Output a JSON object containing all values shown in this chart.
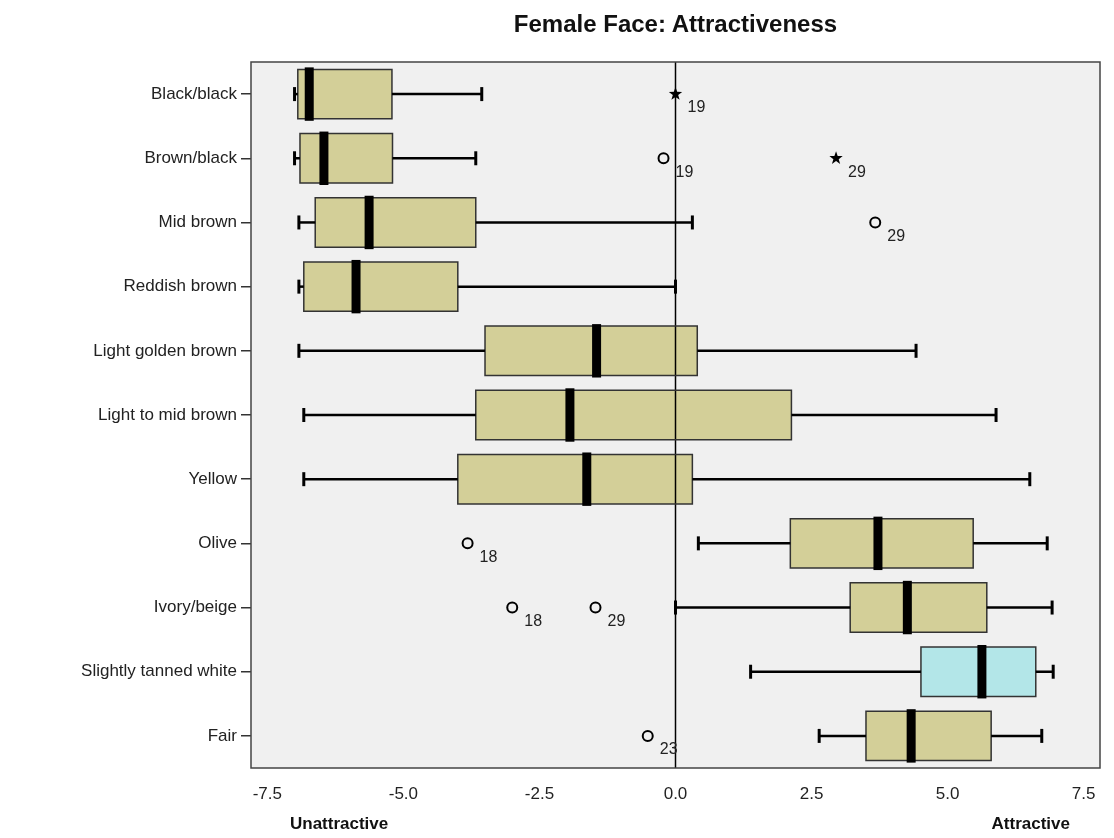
{
  "chart_data": {
    "type": "box",
    "title": "Female Face: Attractiveness",
    "orientation": "horizontal",
    "grid": false,
    "legend": false,
    "categories": [
      "Black/black",
      "Brown/black",
      "Mid brown",
      "Reddish brown",
      "Light golden brown",
      "Light to mid brown",
      "Yellow",
      "Olive",
      "Ivory/beige",
      "Slightly tanned white",
      "Fair"
    ],
    "colors": [
      "#d3cf98",
      "#d3cf98",
      "#d3cf98",
      "#d3cf98",
      "#d3cf98",
      "#d3cf98",
      "#d3cf98",
      "#d3cf98",
      "#d3cf98",
      "#b3e6e8",
      "#d3cf98"
    ],
    "boxes": [
      {
        "low": -7.0,
        "q1": -6.94,
        "median": -6.73,
        "q3": -5.21,
        "high": -3.56
      },
      {
        "low": -7.0,
        "q1": -6.9,
        "median": -6.46,
        "q3": -5.2,
        "high": -3.67
      },
      {
        "low": -6.92,
        "q1": -6.62,
        "median": -5.63,
        "q3": -3.67,
        "high": 0.31
      },
      {
        "low": -6.92,
        "q1": -6.83,
        "median": -5.87,
        "q3": -4.0,
        "high": 0
      },
      {
        "low": -6.92,
        "q1": -3.5,
        "median": -1.45,
        "q3": 0.4,
        "high": 4.42
      },
      {
        "low": -6.83,
        "q1": -3.67,
        "median": -1.94,
        "q3": 2.13,
        "high": 5.89
      },
      {
        "low": -6.83,
        "q1": -4.0,
        "median": -1.63,
        "q3": 0.31,
        "high": 6.51
      },
      {
        "low": 0.42,
        "q1": 2.11,
        "median": 3.72,
        "q3": 5.47,
        "high": 6.83
      },
      {
        "low": 0,
        "q1": 3.21,
        "median": 4.26,
        "q3": 5.72,
        "high": 6.92
      },
      {
        "low": 1.38,
        "q1": 4.51,
        "median": 5.63,
        "q3": 6.62,
        "high": 6.94
      },
      {
        "low": 2.64,
        "q1": 3.5,
        "median": 4.33,
        "q3": 5.8,
        "high": 6.73
      }
    ],
    "series": [
      {
        "type": "scatter",
        "marker": "star",
        "color": "#000000",
        "x": [
          "Black/black",
          "Brown/black"
        ],
        "values": [
          0,
          2.95
        ]
      },
      {
        "type": "scatter",
        "marker": "circle",
        "color": "#000000",
        "x": [
          "Brown/black",
          "Mid brown",
          "Olive",
          "Ivory/beige",
          "Ivory/beige",
          "Fair"
        ],
        "values": [
          -0.22,
          3.67,
          -3.82,
          -3.0,
          -1.47,
          -0.51
        ]
      }
    ],
    "xlim": [
      -7.8,
      7.8
    ],
    "xticks": [
      -7.5,
      {
        "value": -5,
        "label": "-5.0"
      },
      -2.5,
      {
        "value": 0,
        "label": "0.0"
      },
      2.5,
      {
        "value": 5,
        "label": "5.0"
      },
      7.5
    ],
    "ref_lines": [
      {
        "axis": "x",
        "value": 0,
        "color": "#000000"
      }
    ],
    "annotations": [
      {
        "text": "19",
        "x": 0,
        "y": "Black/black"
      },
      {
        "text": "19",
        "x": -0.22,
        "y": "Brown/black"
      },
      {
        "text": "29",
        "x": 2.95,
        "y": "Brown/black"
      },
      {
        "text": "29",
        "x": 3.67,
        "y": "Mid brown"
      },
      {
        "text": "18",
        "x": -3.82,
        "y": "Olive"
      },
      {
        "text": "18",
        "x": -3.0,
        "y": "Ivory/beige"
      },
      {
        "text": "29",
        "x": -1.47,
        "y": "Ivory/beige"
      },
      {
        "text": "23",
        "x": -0.51,
        "y": "Fair"
      },
      "Unattractive",
      "Attractive"
    ]
  }
}
